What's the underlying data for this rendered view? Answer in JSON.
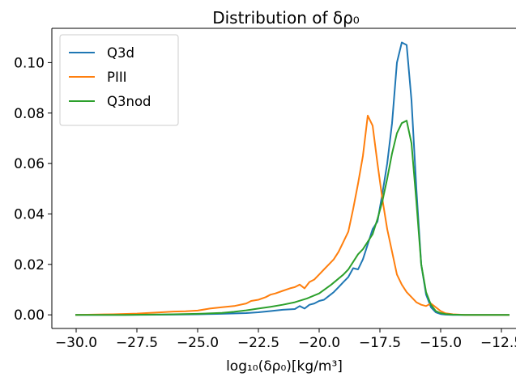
{
  "chart_data": {
    "type": "line",
    "title": "Distribution of δρ₀",
    "xlabel": "log₁₀(δρ₀)[kg/m³]",
    "ylabel": "",
    "xlim": [
      -31.0,
      -11.9
    ],
    "ylim": [
      -0.0054,
      0.1136
    ],
    "grid": false,
    "legend_position": "upper-left",
    "xticks": [
      -30.0,
      -27.5,
      -25.0,
      -22.5,
      -20.0,
      -17.5,
      -15.0,
      -12.5
    ],
    "xtick_labels": [
      "−30.0",
      "−27.5",
      "−25.0",
      "−22.5",
      "−20.0",
      "−17.5",
      "−15.0",
      "−12.5"
    ],
    "yticks": [
      0.0,
      0.02,
      0.04,
      0.06,
      0.08,
      0.1
    ],
    "ytick_labels": [
      "0.00",
      "0.02",
      "0.04",
      "0.06",
      "0.08",
      "0.10"
    ],
    "series": [
      {
        "name": "Q3d",
        "color": "#1f77b4",
        "x": [
          -30.0,
          -28.0,
          -26.0,
          -25.0,
          -24.0,
          -23.0,
          -22.5,
          -22.0,
          -21.5,
          -21.0,
          -20.8,
          -20.6,
          -20.4,
          -20.2,
          -20.0,
          -19.8,
          -19.6,
          -19.4,
          -19.2,
          -19.0,
          -18.8,
          -18.6,
          -18.4,
          -18.2,
          -18.0,
          -17.8,
          -17.6,
          -17.4,
          -17.2,
          -17.0,
          -16.8,
          -16.6,
          -16.4,
          -16.2,
          -16.0,
          -15.8,
          -15.6,
          -15.4,
          -15.2,
          -15.0,
          -14.8,
          -14.5,
          -14.0,
          -13.0,
          -12.2
        ],
        "y": [
          0.0,
          0.0,
          0.0001,
          0.0002,
          0.0004,
          0.0007,
          0.001,
          0.0015,
          0.002,
          0.0023,
          0.0035,
          0.0025,
          0.004,
          0.0045,
          0.0055,
          0.006,
          0.0075,
          0.009,
          0.011,
          0.013,
          0.015,
          0.0185,
          0.018,
          0.022,
          0.028,
          0.034,
          0.037,
          0.048,
          0.06,
          0.076,
          0.1,
          0.108,
          0.107,
          0.085,
          0.05,
          0.02,
          0.008,
          0.003,
          0.001,
          0.0003,
          0.0001,
          0.0,
          0.0,
          0.0,
          0.0
        ]
      },
      {
        "name": "PIII",
        "color": "#ff7f0e",
        "x": [
          -30.0,
          -28.5,
          -27.5,
          -26.5,
          -26.0,
          -25.5,
          -25.0,
          -24.5,
          -24.0,
          -23.5,
          -23.0,
          -22.8,
          -22.5,
          -22.2,
          -22.0,
          -21.8,
          -21.5,
          -21.2,
          -21.0,
          -20.8,
          -20.6,
          -20.4,
          -20.2,
          -20.0,
          -19.8,
          -19.6,
          -19.4,
          -19.2,
          -19.0,
          -18.8,
          -18.6,
          -18.4,
          -18.2,
          -18.0,
          -17.8,
          -17.6,
          -17.4,
          -17.2,
          -17.0,
          -16.8,
          -16.6,
          -16.4,
          -16.2,
          -16.0,
          -15.8,
          -15.6,
          -15.4,
          -15.2,
          -15.0,
          -14.8,
          -14.5,
          -14.0,
          -13.0,
          -12.2
        ],
        "y": [
          0.0,
          0.0002,
          0.0005,
          0.001,
          0.0013,
          0.0014,
          0.0017,
          0.0025,
          0.003,
          0.0035,
          0.0045,
          0.0055,
          0.006,
          0.007,
          0.008,
          0.0085,
          0.0095,
          0.0105,
          0.011,
          0.012,
          0.0105,
          0.013,
          0.014,
          0.016,
          0.018,
          0.02,
          0.022,
          0.025,
          0.029,
          0.033,
          0.042,
          0.052,
          0.063,
          0.079,
          0.075,
          0.06,
          0.046,
          0.034,
          0.025,
          0.016,
          0.012,
          0.009,
          0.007,
          0.005,
          0.004,
          0.0035,
          0.0045,
          0.003,
          0.0015,
          0.0006,
          0.0002,
          0.0,
          0.0,
          0.0
        ]
      },
      {
        "name": "Q3nod",
        "color": "#2ca02c",
        "x": [
          -30.0,
          -28.0,
          -26.0,
          -25.0,
          -24.0,
          -23.5,
          -23.0,
          -22.5,
          -22.0,
          -21.5,
          -21.0,
          -20.5,
          -20.0,
          -19.5,
          -19.0,
          -18.8,
          -18.6,
          -18.4,
          -18.2,
          -18.0,
          -17.8,
          -17.6,
          -17.4,
          -17.2,
          -17.0,
          -16.8,
          -16.6,
          -16.4,
          -16.2,
          -16.0,
          -15.8,
          -15.6,
          -15.4,
          -15.2,
          -15.0,
          -14.8,
          -14.5,
          -14.0,
          -13.0,
          -12.2
        ],
        "y": [
          0.0,
          0.0,
          0.0002,
          0.0004,
          0.0008,
          0.0012,
          0.0018,
          0.0025,
          0.0032,
          0.004,
          0.005,
          0.0065,
          0.0085,
          0.012,
          0.016,
          0.018,
          0.021,
          0.024,
          0.026,
          0.029,
          0.032,
          0.038,
          0.045,
          0.054,
          0.064,
          0.072,
          0.076,
          0.077,
          0.068,
          0.045,
          0.02,
          0.009,
          0.004,
          0.0015,
          0.0007,
          0.0003,
          0.0001,
          0.0,
          0.0,
          0.0
        ]
      }
    ]
  }
}
